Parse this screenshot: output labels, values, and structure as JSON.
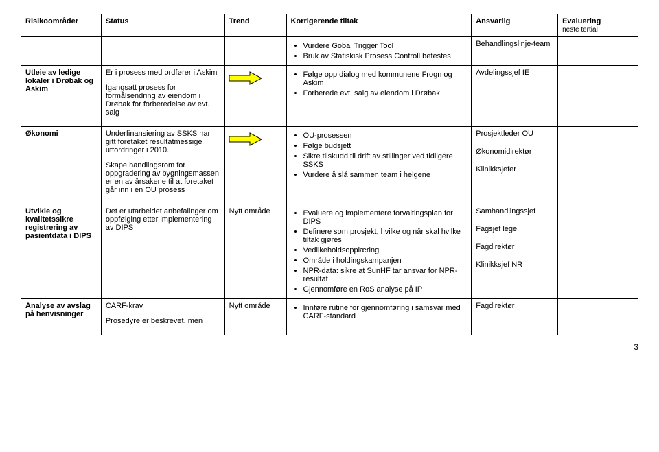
{
  "headers": [
    "Risikoområder",
    "Status",
    "Trend",
    "Korrigerende tiltak",
    "Ansvarlig",
    "Evaluering"
  ],
  "eval_sub": "neste tertial",
  "rows": [
    {
      "risk": "",
      "status": "",
      "trend_arrow": false,
      "trend_text": "",
      "tiltak": [
        "Vurdere Gobal Trigger Tool",
        "Bruk av Statiskisk Prosess Controll befestes"
      ],
      "ansvarlig": [
        "Behandlingslinje-team"
      ],
      "eval": ""
    },
    {
      "risk": "Utleie av ledige lokaler i Drøbak og Askim",
      "status_paras": [
        "Er i prosess med ordfører i Askim",
        "Igangsatt prosess for formålsendring av eiendom i Drøbak for forberedelse av evt. salg"
      ],
      "trend_arrow": true,
      "trend_text": "",
      "tiltak": [
        "Følge opp dialog med kommunene Frogn og Askim",
        "Forberede evt. salg av eiendom i Drøbak"
      ],
      "ansvarlig": [
        "Avdelingssjef IE"
      ],
      "eval": ""
    },
    {
      "risk": "Økonomi",
      "status_paras": [
        "Underfinansiering av SSKS har gitt foretaket resultatmessige utfordringer i 2010.",
        "Skape handlingsrom for oppgradering av bygningsmassen er en av årsakene til at foretaket går inn i en OU prosess"
      ],
      "trend_arrow": true,
      "trend_text": "",
      "tiltak": [
        "OU-prosessen",
        "Følge budsjett",
        "Sikre tilskudd til drift av stillinger ved tidligere SSKS",
        "Vurdere å slå sammen team i helgene"
      ],
      "ansvarlig": [
        "Prosjektleder OU",
        "Økonomidirektør",
        "Klinikksjefer"
      ],
      "eval": ""
    },
    {
      "risk": "Utvikle og kvalitetssikre registrering av pasientdata i DIPS",
      "status_paras": [
        "Det er utarbeidet anbefalinger om oppfølging etter implementering av DIPS"
      ],
      "trend_arrow": false,
      "trend_text": "Nytt område",
      "tiltak": [
        "Evaluere og implementere forvaltingsplan for DIPS",
        "Definere som prosjekt, hvilke og når skal hvilke tiltak gjøres",
        "Vedlikeholdsopplæring",
        "Område i holdingskampanjen",
        "NPR-data: sikre at SunHF tar ansvar for NPR-resultat",
        "Gjennomføre en RoS analyse på IP"
      ],
      "ansvarlig": [
        "Samhandlingssjef",
        "Fagsjef lege",
        "Fagdirektør",
        "Klinikksjef NR"
      ],
      "eval": ""
    },
    {
      "risk": "Analyse av avslag på henvisninger",
      "status_paras": [
        "CARF-krav",
        "Prosedyre er beskrevet, men"
      ],
      "trend_arrow": false,
      "trend_text": "Nytt område",
      "tiltak": [
        "Innføre rutine for gjennomføring i samsvar med CARF-standard"
      ],
      "ansvarlig": [
        "Fagdirektør"
      ],
      "eval": ""
    }
  ],
  "page_number": "3",
  "arrow": {
    "fill": "#ffff00",
    "stroke": "#000000"
  }
}
